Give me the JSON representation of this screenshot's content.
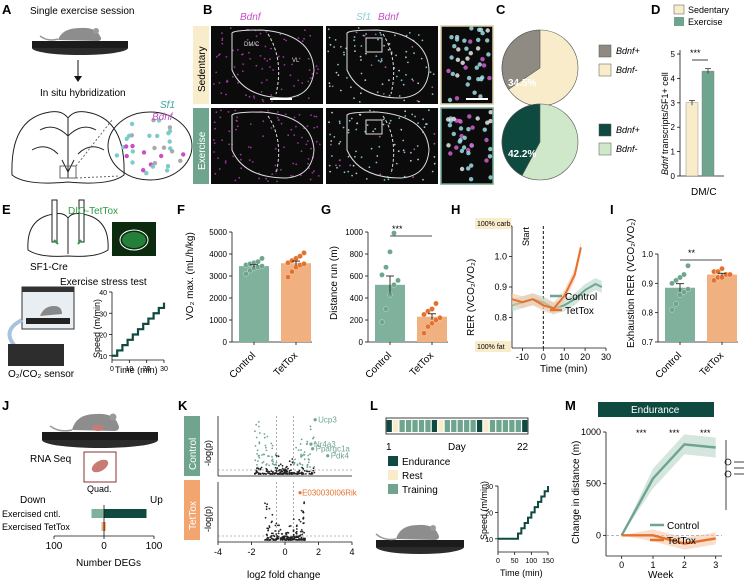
{
  "colors": {
    "sedentary": "#f8eccb",
    "exercise": "#6fa58f",
    "control": "#6fa58f",
    "tettox": "#e4722e",
    "dark_green": "#0f4a40",
    "gray_pie": "#8f8a82",
    "light_green_pie": "#cfe8c9",
    "magenta": "#c84fc4",
    "cyan": "#8fd0d8"
  },
  "panels": {
    "A": {
      "letter": "A",
      "title": "Single exercise session",
      "ish_label": "In situ hybridization",
      "sf1": "Sf1",
      "bdnf": "Bdnf"
    },
    "B": {
      "letter": "B",
      "col1_label": "Bdnf",
      "col2_sf1": "Sf1",
      "col2_bdnf": "Bdnf",
      "row_sedentary": "Sedentary",
      "row_exercise": "Exercise",
      "region_dmc": "DM/C",
      "region_vl": "VL"
    },
    "C": {
      "letter": "C",
      "pie_top_pct": "34.5%",
      "pie_bottom_pct": "42.2%",
      "legend_pos": "Bdnf+",
      "legend_neg": "Bdnf-"
    },
    "D": {
      "letter": "D",
      "legend_sed": "Sedentary",
      "legend_ex": "Exercise",
      "ylabel_italic": "Bdnf",
      "ylabel_rest": " transcripts/SF1+ cell",
      "xlabel": "DM/C",
      "sig": "***",
      "ticks": [
        "0",
        "1",
        "2",
        "3",
        "4",
        "5"
      ]
    },
    "E": {
      "letter": "E",
      "dio": "DIO-TetTox",
      "sf1cre": "SF1-Cre",
      "stress_test": "Exercise stress test",
      "sensor": "O₂/CO₂ sensor",
      "ylabel": "Speed (m/min)",
      "xlabel": "Time (min)",
      "yticks": [
        "10",
        "20",
        "30",
        "40"
      ],
      "xticks": [
        "0",
        "10",
        "20",
        "30"
      ]
    },
    "F": {
      "letter": "F",
      "ylabel": "VO₂ max. (mL/h/kg)",
      "yticks": [
        "0",
        "1000",
        "2000",
        "3000",
        "4000",
        "5000"
      ],
      "xticks": [
        "Control",
        "TetTox"
      ]
    },
    "G": {
      "letter": "G",
      "ylabel": "Distance run (m)",
      "yticks": [
        "0",
        "200",
        "400",
        "600",
        "800",
        "1000"
      ],
      "xticks": [
        "Control",
        "TetTox"
      ],
      "sig": "***"
    },
    "H": {
      "letter": "H",
      "ylabel": "RER (VCO₂/VO₂)",
      "xlabel": "Time (min)",
      "yticks": [
        "0.8",
        "0.9",
        "1.0",
        "1.1"
      ],
      "xticks": [
        "-10",
        "0",
        "10",
        "20",
        "30"
      ],
      "start": "Start",
      "carb": "100% carb",
      "fat": "100% fat",
      "legend_control": "Control",
      "legend_tettox": "TetTox"
    },
    "I": {
      "letter": "I",
      "ylabel": "Exhaustion RER (VCO₂/VO₂)",
      "yticks": [
        "0.7",
        "0.8",
        "0.9",
        "1.0"
      ],
      "xticks": [
        "Control",
        "TetTox"
      ],
      "sig": "**"
    },
    "J": {
      "letter": "J",
      "rnaseq": "RNA Seq",
      "quad": "Quad.",
      "down": "Down",
      "up": "Up",
      "row1": "Exercised cntl.",
      "row2": "Exercised TetTox",
      "xlabel": "Number DEGs",
      "xticks": [
        "100",
        "0",
        "100"
      ]
    },
    "K": {
      "letter": "K",
      "row_control": "Control",
      "row_tettox": "TetTox",
      "ylabel": "-log(p)",
      "xlabel": "log2 fold change",
      "xticks": [
        "-4",
        "-2",
        "0",
        "2",
        "4"
      ],
      "genes_control": [
        "Ucp3",
        "Nr4a3",
        "Ppargc1a",
        "Pdk4"
      ],
      "gene_tettox": "E030030I06Rik"
    },
    "L": {
      "letter": "L",
      "day_label": "Day",
      "day_start": "1",
      "day_end": "22",
      "legend_endurance": "Endurance",
      "legend_rest": "Rest",
      "legend_training": "Training",
      "ylabel": "Speed (m/min)",
      "xlabel": "Time (min)",
      "yticks": [
        "10",
        "20",
        "30"
      ],
      "xticks": [
        "0",
        "50",
        "100",
        "150"
      ]
    },
    "M": {
      "letter": "M",
      "banner": "Endurance",
      "ylabel": "Change in distance (m)",
      "xlabel": "Week",
      "yticks": [
        "0",
        "500",
        "1000"
      ],
      "xticks": [
        "0",
        "1",
        "2",
        "3"
      ],
      "sig_w1": "***",
      "sig_w2": "***",
      "sig_w3": "***",
      "legend_control": "Control",
      "legend_tettox": "TetTox"
    }
  },
  "chart_data": [
    {
      "panel": "C",
      "type": "pie",
      "title": "",
      "charts": [
        {
          "group": "Sedentary",
          "slices": [
            {
              "label": "Bdnf+",
              "value": 34.5
            },
            {
              "label": "Bdnf-",
              "value": 65.5
            }
          ]
        },
        {
          "group": "Exercise",
          "slices": [
            {
              "label": "Bdnf+",
              "value": 42.2
            },
            {
              "label": "Bdnf-",
              "value": 57.8
            }
          ]
        }
      ]
    },
    {
      "panel": "D",
      "type": "bar",
      "categories": [
        "DM/C"
      ],
      "series": [
        {
          "name": "Sedentary",
          "values": [
            3.0
          ],
          "error": [
            0.1
          ]
        },
        {
          "name": "Exercise",
          "values": [
            4.3
          ],
          "error": [
            0.1
          ]
        }
      ],
      "ylim": [
        0,
        5
      ]
    },
    {
      "panel": "E",
      "type": "line",
      "xlabel": "Time (min)",
      "ylabel": "Speed (m/min)",
      "x": [
        0,
        3,
        6,
        9,
        12,
        15,
        18,
        21,
        24,
        27,
        30
      ],
      "y": [
        10,
        12.5,
        15,
        17.5,
        20,
        22.5,
        25,
        27.5,
        30,
        32.5,
        35
      ],
      "ylim": [
        8,
        40
      ],
      "xlim": [
        0,
        30
      ]
    },
    {
      "panel": "F",
      "type": "bar",
      "categories": [
        "Control",
        "TetTox"
      ],
      "values": [
        3450,
        3580
      ],
      "ylabel": "VO₂ max. (mL/h/kg)",
      "ylim": [
        0,
        5000
      ],
      "points": [
        [
          3100,
          3250,
          3350,
          3400,
          3450,
          3500,
          3550,
          3600,
          3650,
          3800
        ],
        [
          2950,
          3200,
          3400,
          3500,
          3550,
          3600,
          3700,
          3800,
          3900,
          4050
        ]
      ]
    },
    {
      "panel": "G",
      "type": "bar",
      "categories": [
        "Control",
        "TetTox"
      ],
      "values": [
        520,
        230
      ],
      "ylabel": "Distance run (m)",
      "ylim": [
        0,
        1000
      ],
      "points": [
        [
          180,
          300,
          430,
          520,
          560,
          610,
          680,
          820,
          990
        ],
        [
          80,
          140,
          170,
          200,
          220,
          250,
          280,
          300,
          350
        ]
      ]
    },
    {
      "panel": "H",
      "type": "line",
      "xlabel": "Time (min)",
      "ylabel": "RER (VCO₂/VO₂)",
      "xlim": [
        -15,
        30
      ],
      "ylim": [
        0.7,
        1.1
      ],
      "series": [
        {
          "name": "Control",
          "x": [
            -15,
            -10,
            -5,
            0,
            5,
            10,
            15,
            20,
            25,
            28
          ],
          "y": [
            0.84,
            0.85,
            0.86,
            0.85,
            0.83,
            0.84,
            0.86,
            0.89,
            0.91,
            0.9
          ]
        },
        {
          "name": "TetTox",
          "x": [
            -15,
            -10,
            -5,
            0,
            5,
            10,
            15,
            18
          ],
          "y": [
            0.86,
            0.85,
            0.86,
            0.84,
            0.83,
            0.87,
            0.94,
            1.03
          ]
        }
      ]
    },
    {
      "panel": "I",
      "type": "bar",
      "categories": [
        "Control",
        "TetTox"
      ],
      "values": [
        0.885,
        0.93
      ],
      "ylabel": "Exhaustion RER (VCO₂/VO₂)",
      "ylim": [
        0.7,
        1.0
      ],
      "points": [
        [
          0.81,
          0.83,
          0.86,
          0.87,
          0.88,
          0.9,
          0.91,
          0.92,
          0.93,
          0.96
        ],
        [
          0.91,
          0.92,
          0.92,
          0.93,
          0.93,
          0.94,
          0.94,
          0.95
        ]
      ]
    },
    {
      "panel": "J",
      "type": "bar",
      "categories": [
        "Exercised cntl.",
        "Exercised TetTox"
      ],
      "series": [
        {
          "name": "Down",
          "values": [
            25,
            5
          ]
        },
        {
          "name": "Up",
          "values": [
            85,
            3
          ]
        }
      ],
      "xlabel": "Number DEGs"
    },
    {
      "panel": "K",
      "type": "scatter",
      "xlabel": "log2 fold change",
      "ylabel": "-log(p)",
      "xlim": [
        -4,
        4
      ],
      "labeled_points": [
        {
          "label": "Ucp3",
          "x": 1.8,
          "y": 0.97
        },
        {
          "label": "Nr4a3",
          "x": 1.55,
          "y": 0.55
        },
        {
          "label": "Ppargc1a",
          "x": 1.65,
          "y": 0.47
        },
        {
          "label": "Pdk4",
          "x": 2.55,
          "y": 0.35
        },
        {
          "label": "E030030I06Rik",
          "x": 0.9,
          "y": 0.85
        }
      ]
    },
    {
      "panel": "L",
      "type": "line",
      "xlabel": "Time (min)",
      "ylabel": "Speed (m/min)",
      "x": [
        0,
        50,
        60,
        70,
        80,
        90,
        100,
        110,
        120,
        130,
        140,
        150
      ],
      "y": [
        10,
        10,
        12,
        14,
        16,
        18,
        20,
        22,
        24,
        26,
        28,
        30
      ],
      "xlim": [
        0,
        150
      ],
      "ylim": [
        5,
        30
      ]
    },
    {
      "panel": "M",
      "type": "line",
      "xlabel": "Week",
      "ylabel": "Change in distance (m)",
      "ylim": [
        -200,
        1000
      ],
      "series": [
        {
          "name": "Control",
          "x": [
            0,
            1,
            2,
            3
          ],
          "y": [
            0,
            550,
            880,
            850
          ]
        },
        {
          "name": "TetTox",
          "x": [
            0,
            1,
            2,
            3
          ],
          "y": [
            0,
            0,
            -80,
            -30
          ]
        }
      ]
    }
  ]
}
